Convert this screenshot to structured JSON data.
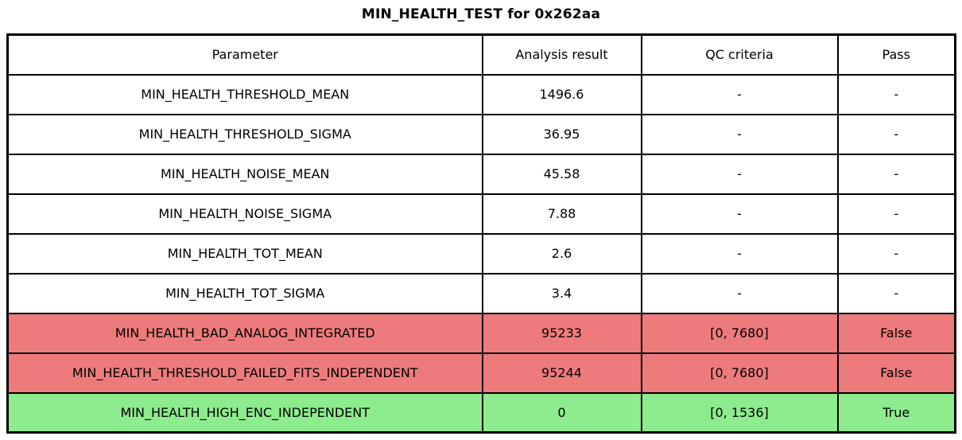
{
  "title": "MIN_HEALTH_TEST for 0x262aa",
  "colors": {
    "fail_row_background": "#ee7b7b",
    "pass_row_background": "#8dec8d",
    "neutral_row_background": "#ffffff",
    "border": "#000000",
    "text": "#000000"
  },
  "chart_data": {
    "type": "table",
    "title": "MIN_HEALTH_TEST for 0x262aa",
    "columns": [
      "Parameter",
      "Analysis result",
      "QC criteria",
      "Pass"
    ],
    "rows": [
      {
        "cells": [
          "MIN_HEALTH_THRESHOLD_MEAN",
          "1496.6",
          "-",
          "-"
        ],
        "status": "neutral"
      },
      {
        "cells": [
          "MIN_HEALTH_THRESHOLD_SIGMA",
          "36.95",
          "-",
          "-"
        ],
        "status": "neutral"
      },
      {
        "cells": [
          "MIN_HEALTH_NOISE_MEAN",
          "45.58",
          "-",
          "-"
        ],
        "status": "neutral"
      },
      {
        "cells": [
          "MIN_HEALTH_NOISE_SIGMA",
          "7.88",
          "-",
          "-"
        ],
        "status": "neutral"
      },
      {
        "cells": [
          "MIN_HEALTH_TOT_MEAN",
          "2.6",
          "-",
          "-"
        ],
        "status": "neutral"
      },
      {
        "cells": [
          "MIN_HEALTH_TOT_SIGMA",
          "3.4",
          "-",
          "-"
        ],
        "status": "neutral"
      },
      {
        "cells": [
          "MIN_HEALTH_BAD_ANALOG_INTEGRATED",
          "95233",
          "[0, 7680]",
          "False"
        ],
        "status": "fail"
      },
      {
        "cells": [
          "MIN_HEALTH_THRESHOLD_FAILED_FITS_INDEPENDENT",
          "95244",
          "[0, 7680]",
          "False"
        ],
        "status": "fail"
      },
      {
        "cells": [
          "MIN_HEALTH_HIGH_ENC_INDEPENDENT",
          "0",
          "[0, 1536]",
          "True"
        ],
        "status": "pass"
      }
    ]
  }
}
